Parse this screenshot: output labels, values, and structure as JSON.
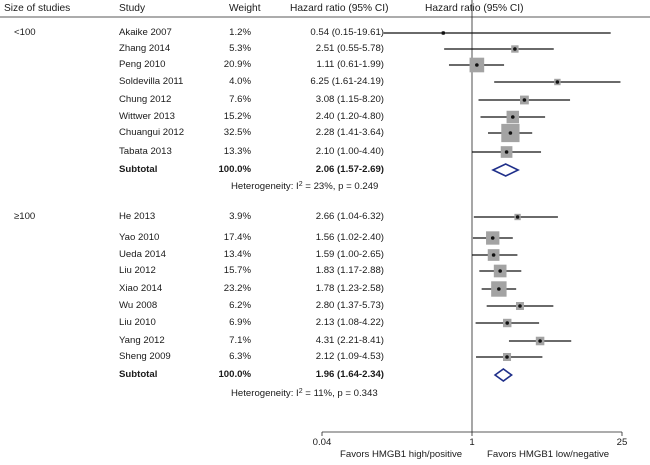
{
  "header": {
    "size": "Size of studies",
    "study": "Study",
    "weight": "Weight",
    "hr_ci": "Hazard ratio (95% CI)",
    "plot_title": "Hazard ratio (95% CI)"
  },
  "chart_data": {
    "type": "forest",
    "scale": "log",
    "xlim": [
      0.04,
      25
    ],
    "x_ticks": [
      {
        "value": 0.04,
        "label": "0.04"
      },
      {
        "value": 1,
        "label": "1"
      },
      {
        "value": 25,
        "label": "25"
      }
    ],
    "reference_line": 1,
    "xlabel_left": "Favors  HMGB1 high/positive",
    "xlabel_right": "Favors  HMGB1 low/negative",
    "groups": [
      {
        "label": "<100",
        "studies": [
          {
            "name": "Akaike 2007",
            "weight": "1.2%",
            "weight_value": 1.2,
            "hr_text": "0.54 (0.15-19.61)",
            "hr": 0.54,
            "lo": 0.15,
            "hi": 19.61
          },
          {
            "name": "Zhang 2014",
            "weight": "5.3%",
            "weight_value": 5.3,
            "hr_text": "2.51 (0.55-5.78)",
            "hr": 2.51,
            "lo": 0.55,
            "hi": 5.78
          },
          {
            "name": "Peng 2010",
            "weight": "20.9%",
            "weight_value": 20.9,
            "hr_text": "1.11 (0.61-1.99)",
            "hr": 1.11,
            "lo": 0.61,
            "hi": 1.99
          },
          {
            "name": "Soldevilla 2011",
            "weight": "4.0%",
            "weight_value": 4.0,
            "hr_text": "6.25 (1.61-24.19)",
            "hr": 6.25,
            "lo": 1.61,
            "hi": 24.19
          },
          {
            "name": "Chung 2012",
            "weight": "7.6%",
            "weight_value": 7.6,
            "hr_text": "3.08 (1.15-8.20)",
            "hr": 3.08,
            "lo": 1.15,
            "hi": 8.2
          },
          {
            "name": "Wittwer 2013",
            "weight": "15.2%",
            "weight_value": 15.2,
            "hr_text": "2.40 (1.20-4.80)",
            "hr": 2.4,
            "lo": 1.2,
            "hi": 4.8
          },
          {
            "name": "Chuangui 2012",
            "weight": "32.5%",
            "weight_value": 32.5,
            "hr_text": "2.28 (1.41-3.64)",
            "hr": 2.28,
            "lo": 1.41,
            "hi": 3.64
          },
          {
            "name": "Tabata 2013",
            "weight": "13.3%",
            "weight_value": 13.3,
            "hr_text": "2.10 (1.00-4.40)",
            "hr": 2.1,
            "lo": 1.0,
            "hi": 4.4
          }
        ],
        "subtotal": {
          "label": "Subtotal",
          "weight": "100.0%",
          "hr_text": "2.06 (1.57-2.69)",
          "hr": 2.06,
          "lo": 1.57,
          "hi": 2.69
        },
        "heterogeneity": {
          "prefix": "Heterogeneity: I",
          "sup": "2",
          "suffix": " = 23%, p = 0.249"
        }
      },
      {
        "label": "≥100",
        "studies": [
          {
            "name": "He 2013",
            "weight": "3.9%",
            "weight_value": 3.9,
            "hr_text": "2.66 (1.04-6.32)",
            "hr": 2.66,
            "lo": 1.04,
            "hi": 6.32
          },
          {
            "name": "Yao 2010",
            "weight": "17.4%",
            "weight_value": 17.4,
            "hr_text": "1.56 (1.02-2.40)",
            "hr": 1.56,
            "lo": 1.02,
            "hi": 2.4
          },
          {
            "name": "Ueda 2014",
            "weight": "13.4%",
            "weight_value": 13.4,
            "hr_text": "1.59 (1.00-2.65)",
            "hr": 1.59,
            "lo": 1.0,
            "hi": 2.65
          },
          {
            "name": "Liu 2012",
            "weight": "15.7%",
            "weight_value": 15.7,
            "hr_text": "1.83 (1.17-2.88)",
            "hr": 1.83,
            "lo": 1.17,
            "hi": 2.88
          },
          {
            "name": "Xiao 2014",
            "weight": "23.2%",
            "weight_value": 23.2,
            "hr_text": "1.78 (1.23-2.58)",
            "hr": 1.78,
            "lo": 1.23,
            "hi": 2.58
          },
          {
            "name": "Wu 2008",
            "weight": "6.2%",
            "weight_value": 6.2,
            "hr_text": "2.80 (1.37-5.73)",
            "hr": 2.8,
            "lo": 1.37,
            "hi": 5.73
          },
          {
            "name": "Liu 2010",
            "weight": "6.9%",
            "weight_value": 6.9,
            "hr_text": "2.13 (1.08-4.22)",
            "hr": 2.13,
            "lo": 1.08,
            "hi": 4.22
          },
          {
            "name": "Yang 2012",
            "weight": "7.1%",
            "weight_value": 7.1,
            "hr_text": "4.31 (2.21-8.41)",
            "hr": 4.31,
            "lo": 2.21,
            "hi": 8.41
          },
          {
            "name": "Sheng 2009",
            "weight": "6.3%",
            "weight_value": 6.3,
            "hr_text": "2.12 (1.09-4.53)",
            "hr": 2.12,
            "lo": 1.09,
            "hi": 4.53
          }
        ],
        "subtotal": {
          "label": "Subtotal",
          "weight": "100.0%",
          "hr_text": "1.96 (1.64-2.34)",
          "hr": 1.96,
          "lo": 1.64,
          "hi": 2.34
        },
        "heterogeneity": {
          "prefix": "Heterogeneity: I",
          "sup": "2",
          "suffix": " = 11%, p = 0.343"
        }
      }
    ],
    "colors": {
      "square": "#a3a3a3",
      "line": "#111111",
      "diamond": "#1f2f8a"
    }
  }
}
